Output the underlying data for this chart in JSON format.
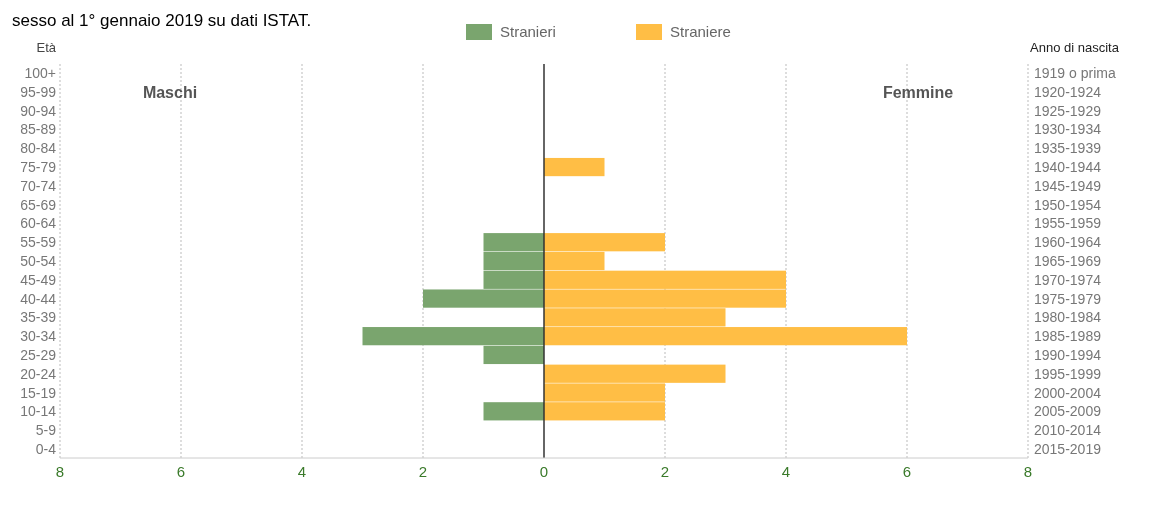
{
  "chart_data": {
    "type": "bar",
    "orientation": "horizontal",
    "title": "sesso al 1° gennaio 2019 su dati ISTAT.",
    "ylabel": "Età",
    "y2label": "Anno di nascita",
    "categories": [
      "100+",
      "95-99",
      "90-94",
      "85-89",
      "80-84",
      "75-79",
      "70-74",
      "65-69",
      "60-64",
      "55-59",
      "50-54",
      "45-49",
      "40-44",
      "35-39",
      "30-34",
      "25-29",
      "20-24",
      "15-19",
      "10-14",
      "5-9",
      "0-4"
    ],
    "y2_categories": [
      "1919 o prima",
      "1920-1924",
      "1925-1929",
      "1930-1934",
      "1935-1939",
      "1940-1944",
      "1945-1949",
      "1950-1954",
      "1955-1959",
      "1960-1964",
      "1965-1969",
      "1970-1974",
      "1975-1979",
      "1980-1984",
      "1985-1989",
      "1990-1994",
      "1995-1999",
      "2000-2004",
      "2005-2009",
      "2010-2014",
      "2015-2019"
    ],
    "series": [
      {
        "name": "Stranieri",
        "color": "#7aa56e",
        "values": [
          0,
          0,
          0,
          0,
          0,
          0,
          0,
          0,
          0,
          -1,
          -1,
          -1,
          -2,
          0,
          -3,
          -1,
          0,
          0,
          -1,
          0,
          0
        ]
      },
      {
        "name": "Straniere",
        "color": "#ffbe45",
        "values": [
          0,
          0,
          0,
          0,
          0,
          1,
          0,
          0,
          0,
          2,
          1,
          4,
          4,
          3,
          6,
          0,
          3,
          2,
          2,
          0,
          0
        ]
      }
    ],
    "xlim": [
      -8,
      8
    ],
    "xticks": [
      {
        "value": -8,
        "label": "8"
      },
      {
        "value": -6,
        "label": "6"
      },
      {
        "value": -4,
        "label": "4"
      },
      {
        "value": -2,
        "label": "2"
      },
      0,
      2,
      4,
      6,
      8
    ],
    "annotations": [
      "Maschi",
      "Femmine"
    ],
    "grid": "x",
    "legend": "top"
  }
}
